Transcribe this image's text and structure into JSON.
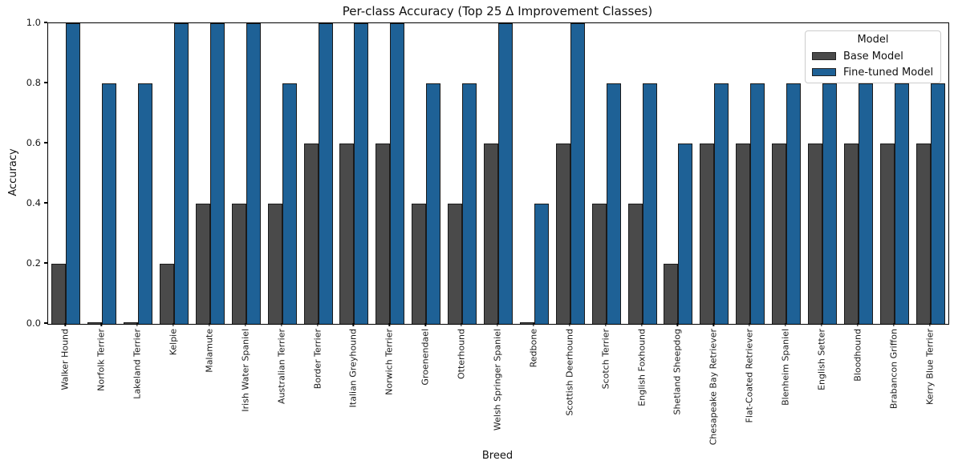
{
  "chart_data": {
    "type": "bar",
    "title": "Per-class Accuracy (Top 25 Δ Improvement Classes)",
    "xlabel": "Breed",
    "ylabel": "Accuracy",
    "ylim": [
      0.0,
      1.0
    ],
    "yticks": [
      "0.0",
      "0.2",
      "0.4",
      "0.6",
      "0.8",
      "1.0"
    ],
    "grid": false,
    "legend": {
      "title": "Model",
      "position": "upper right"
    },
    "categories": [
      "Walker Hound",
      "Norfolk Terrier",
      "Lakeland Terrier",
      "Kelpie",
      "Malamute",
      "Irish Water Spaniel",
      "Australian Terrier",
      "Border Terrier",
      "Italian Greyhound",
      "Norwich Terrier",
      "Groenendael",
      "Otterhound",
      "Welsh Springer Spaniel",
      "Redbone",
      "Scottish Deerhound",
      "Scotch Terrier",
      "English Foxhound",
      "Shetland Sheepdog",
      "Chesapeake Bay Retriever",
      "Flat-Coated Retriever",
      "Blenheim Spaniel",
      "English Setter",
      "Bloodhound",
      "Brabancon Griffon",
      "Kerry Blue Terrier"
    ],
    "series": [
      {
        "name": "Base Model",
        "color": "#4a4a4a",
        "values": [
          0.2,
          0.0,
          0.0,
          0.2,
          0.4,
          0.4,
          0.4,
          0.6,
          0.6,
          0.6,
          0.4,
          0.4,
          0.6,
          0.0,
          0.6,
          0.4,
          0.4,
          0.2,
          0.6,
          0.6,
          0.6,
          0.6,
          0.6,
          0.6,
          0.6
        ]
      },
      {
        "name": "Fine-tuned Model",
        "color": "#1e6196",
        "values": [
          1.0,
          0.8,
          0.8,
          1.0,
          1.0,
          1.0,
          0.8,
          1.0,
          1.0,
          1.0,
          0.8,
          0.8,
          1.0,
          0.4,
          1.0,
          0.8,
          0.8,
          0.6,
          0.8,
          0.8,
          0.8,
          0.8,
          0.8,
          0.8,
          0.8
        ]
      }
    ]
  }
}
